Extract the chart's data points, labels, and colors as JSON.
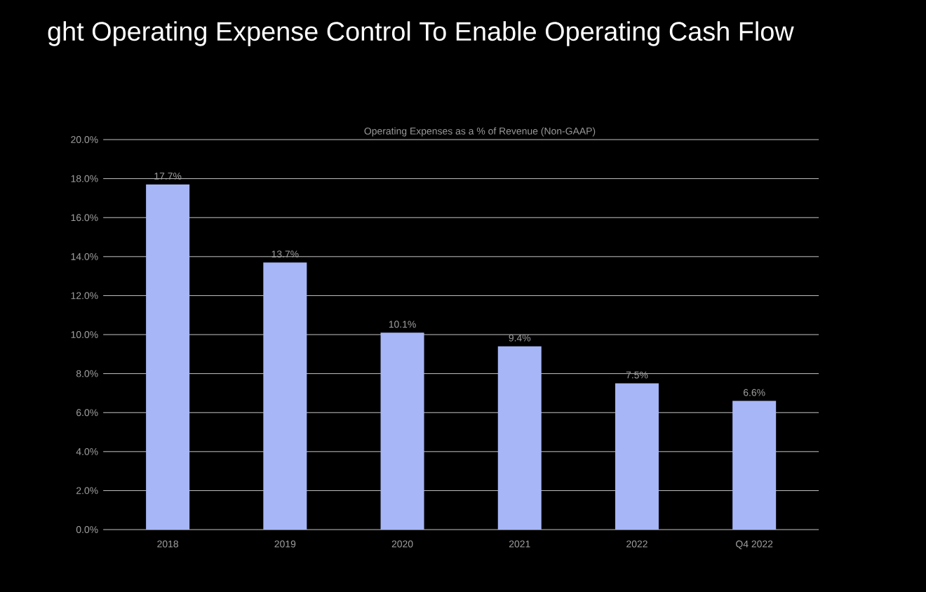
{
  "chart_data": {
    "type": "bar",
    "title": "ght Operating Expense Control To Enable Operating Cash Flow",
    "subtitle": "Operating Expenses as a % of Revenue (Non-GAAP)",
    "categories": [
      "2018",
      "2019",
      "2020",
      "2021",
      "2022",
      "Q4 2022"
    ],
    "values": [
      17.7,
      13.7,
      10.1,
      9.4,
      7.5,
      6.6
    ],
    "value_labels": [
      "17.7%",
      "13.7%",
      "10.1%",
      "9.4%",
      "7.5%",
      "6.6%"
    ],
    "color": "#a7b6f7",
    "ylim": [
      0,
      20
    ],
    "yticks": [
      {
        "value": 0,
        "label": "0.0%"
      },
      {
        "value": 2,
        "label": "2.0%"
      },
      {
        "value": 4,
        "label": "4.0%"
      },
      {
        "value": 6,
        "label": "6.0%"
      },
      {
        "value": 8,
        "label": "8.0%"
      },
      {
        "value": 10,
        "label": "10.0%"
      },
      {
        "value": 12,
        "label": "12.0%"
      },
      {
        "value": 14,
        "label": "14.0%"
      },
      {
        "value": 16,
        "label": "16.0%"
      },
      {
        "value": 18,
        "label": "18.0%"
      },
      {
        "value": 20,
        "label": "20.0%"
      }
    ],
    "grid": "y"
  }
}
